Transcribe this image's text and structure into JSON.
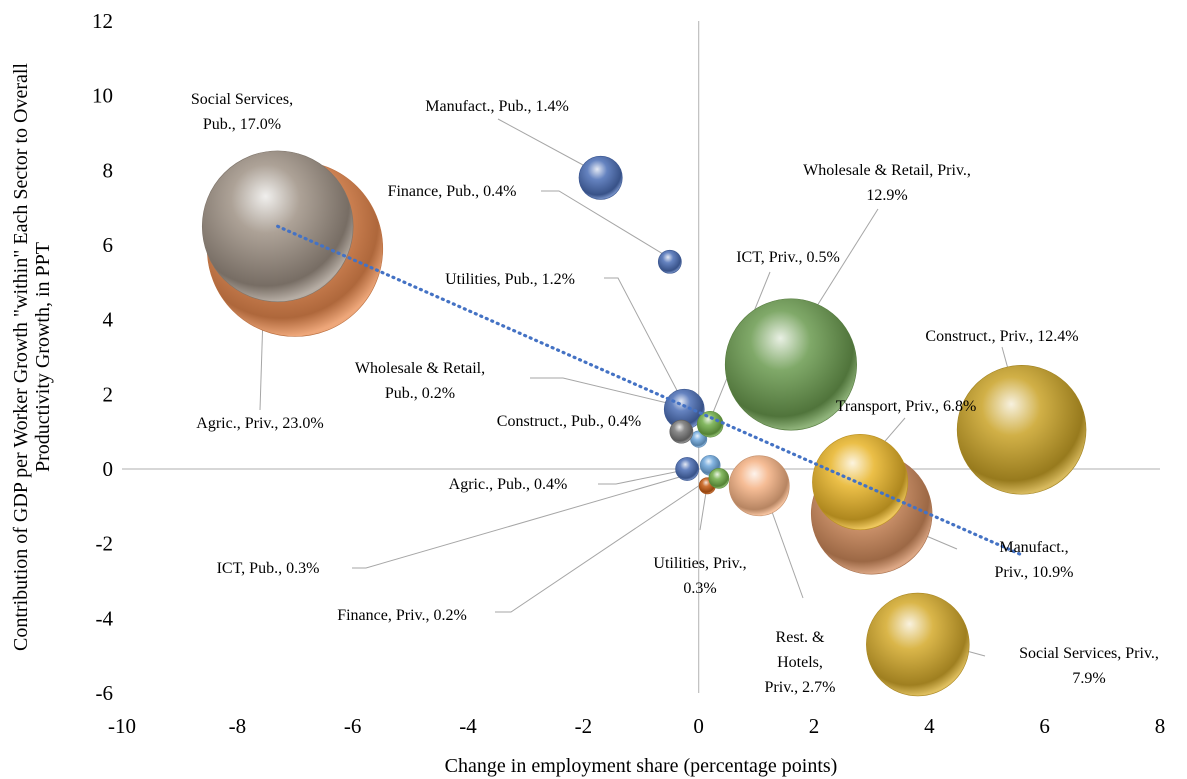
{
  "chart_data": {
    "type": "bubble",
    "xlabel": "Change in employment share (percentage points)",
    "ylabel": [
      "Contribution of GDP per Worker Growth \"within\" Each Sector to Overall",
      "Productivity Growth, in PPT"
    ],
    "xlim": [
      -10,
      8
    ],
    "ylim": [
      -6,
      12
    ],
    "xticks": [
      -10,
      -8,
      -6,
      -4,
      -2,
      0,
      2,
      4,
      6,
      8
    ],
    "yticks": [
      -6,
      -4,
      -2,
      0,
      2,
      4,
      6,
      8,
      10,
      12
    ],
    "grid": false,
    "legend": "none",
    "trendline": {
      "style": "dotted",
      "color": "#4472c4",
      "x": [
        -7.3,
        5.6
      ],
      "y": [
        6.5,
        -2.3
      ]
    },
    "series": [
      {
        "label": [
          "Agric., Priv., 23.0%"
        ],
        "x": -7.0,
        "y": 5.9,
        "size": 23.0,
        "color": "#e8894e"
      },
      {
        "label": [
          "Social Services,",
          "Pub., 17.0%"
        ],
        "x": -7.3,
        "y": 6.5,
        "size": 17.0,
        "color": "#9e9185"
      },
      {
        "label": [
          "Manufact., Pub., 1.4%"
        ],
        "x": -1.7,
        "y": 7.8,
        "size": 1.4,
        "color": "#4a6db5"
      },
      {
        "label": [
          "Finance, Pub., 0.4%"
        ],
        "x": -0.5,
        "y": 5.55,
        "size": 0.4,
        "color": "#4a6db5"
      },
      {
        "label": [
          "Utilities, Pub., 1.2%"
        ],
        "x": -0.25,
        "y": 1.6,
        "size": 1.2,
        "color": "#4a6db5"
      },
      {
        "label": [
          "Wholesale & Retail,",
          "Pub., 0.2%"
        ],
        "x": 0.0,
        "y": 0.8,
        "size": 0.2,
        "color": "#6fa8dc"
      },
      {
        "label": [
          "Construct., Pub., 0.4%"
        ],
        "x": -0.3,
        "y": 1.0,
        "size": 0.4,
        "color": "#777777"
      },
      {
        "label": [
          "ICT, Priv., 0.5%"
        ],
        "x": 0.2,
        "y": 1.2,
        "size": 0.5,
        "color": "#70ad47"
      },
      {
        "label": [
          "Wholesale & Retail, Priv.,",
          "12.9%"
        ],
        "x": 1.6,
        "y": 2.8,
        "size": 12.9,
        "color": "#6a9a4e"
      },
      {
        "label": [
          "Agric., Pub., 0.4%"
        ],
        "x": -0.2,
        "y": 0.0,
        "size": 0.4,
        "color": "#4a6db5"
      },
      {
        "label": [
          "ICT, Pub., 0.3%"
        ],
        "x": 0.2,
        "y": 0.1,
        "size": 0.3,
        "color": "#6fa8dc"
      },
      {
        "label": [
          "Finance, Priv., 0.2%"
        ],
        "x": 0.15,
        "y": -0.45,
        "size": 0.2,
        "color": "#c55a11"
      },
      {
        "label": [
          "Utilities, Priv.,",
          "0.3%"
        ],
        "x": 0.35,
        "y": -0.25,
        "size": 0.3,
        "color": "#70ad47"
      },
      {
        "label": [
          "Rest. &",
          "Hotels,",
          "Priv., 2.7%"
        ],
        "x": 1.05,
        "y": -0.45,
        "size": 2.7,
        "color": "#f4b183"
      },
      {
        "label": [
          "Construct., Priv., 12.4%"
        ],
        "x": 5.6,
        "y": 1.05,
        "size": 12.4,
        "color": "#c9a227"
      },
      {
        "label": [
          "Manufact.,",
          "Priv., 10.9%"
        ],
        "x": 3.0,
        "y": -1.2,
        "size": 10.9,
        "color": "#d08a5c"
      },
      {
        "label": [
          "Transport, Priv., 6.8%"
        ],
        "x": 2.8,
        "y": -0.35,
        "size": 6.8,
        "color": "#e8b428"
      },
      {
        "label": [
          "Social Services, Priv.,",
          "7.9%"
        ],
        "x": 3.8,
        "y": -4.7,
        "size": 7.9,
        "color": "#d4a92a"
      }
    ]
  }
}
